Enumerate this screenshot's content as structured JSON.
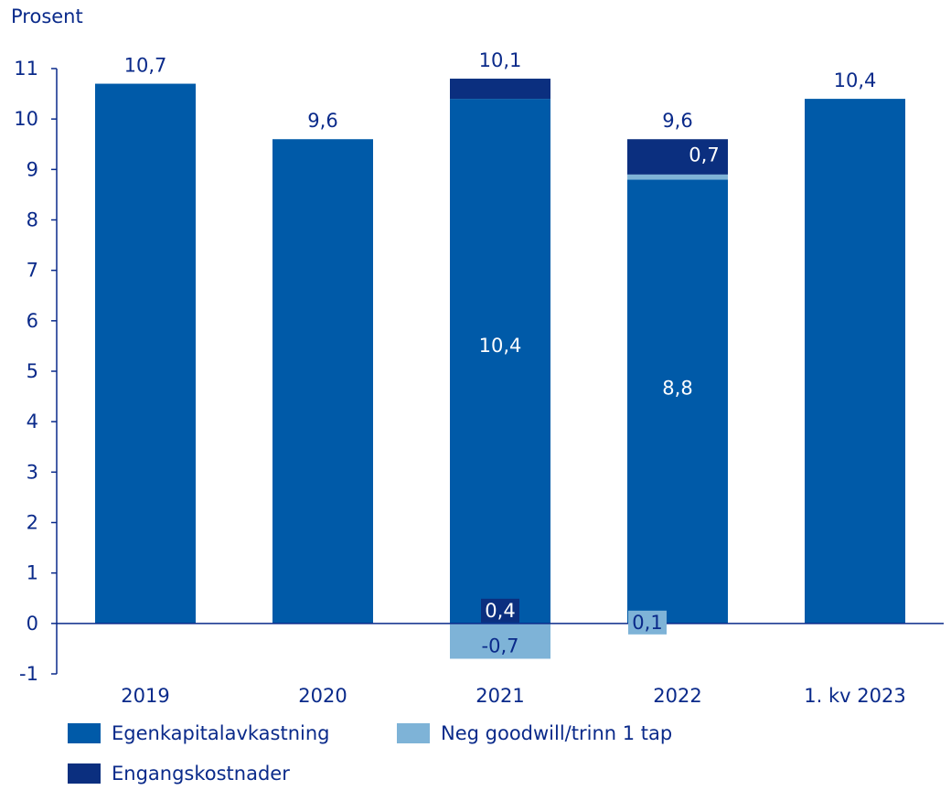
{
  "chart_data": {
    "type": "bar",
    "stacked": true,
    "ylabel": "Prosent",
    "ylim": [
      -1,
      11
    ],
    "yticks": [
      -1,
      0,
      1,
      2,
      3,
      4,
      5,
      6,
      7,
      8,
      9,
      10,
      11
    ],
    "categories": [
      "2019",
      "2020",
      "2021",
      "2022",
      "1. kv 2023"
    ],
    "series": [
      {
        "name": "Egenkapitalavkastning",
        "color": "#005aa8",
        "values": [
          10.7,
          9.6,
          10.4,
          8.8,
          10.4
        ],
        "labels": [
          "",
          "",
          "10,4",
          "8,8",
          ""
        ]
      },
      {
        "name": "Neg goodwill/trinn 1 tap",
        "color": "#7eb3d7",
        "values": [
          0,
          0,
          -0.7,
          0.1,
          0
        ],
        "labels": [
          "",
          "",
          "-0,7",
          "0,1",
          ""
        ]
      },
      {
        "name": "Engangskostnader",
        "color": "#0b2f7f",
        "values": [
          0,
          0,
          0.4,
          0.7,
          0
        ],
        "labels": [
          "",
          "",
          "0,4",
          "0,7",
          ""
        ]
      }
    ],
    "totals": [
      "10,7",
      "9,6",
      "10,1",
      "9,6",
      "10,4"
    ],
    "legend_position": "bottom",
    "grid": false
  }
}
